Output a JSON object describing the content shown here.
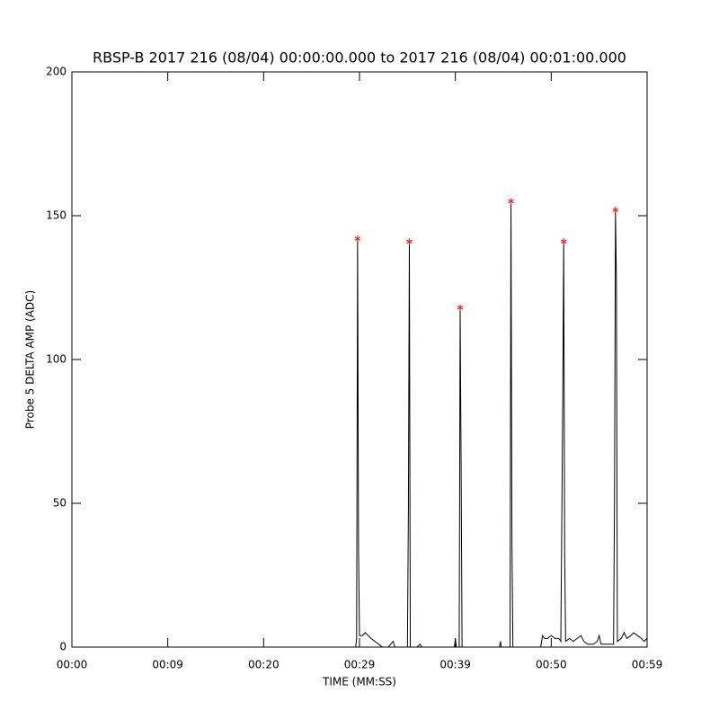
{
  "chart_data": {
    "type": "line",
    "title": "RBSP-B 2017 216 (08/04) 00:00:00.000 to 2017 216 (08/04) 00:01:00.000",
    "xlabel": "TIME (MM:SS)",
    "ylabel": "Probe 5 DELTA AMP (ADC)",
    "xlim": [
      0,
      60
    ],
    "ylim": [
      0,
      200
    ],
    "xticks": [
      {
        "value": 0,
        "label": "00:00"
      },
      {
        "value": 10,
        "label": "00:09"
      },
      {
        "value": 20,
        "label": "00:20"
      },
      {
        "value": 30,
        "label": "00:29"
      },
      {
        "value": 40,
        "label": "00:39"
      },
      {
        "value": 50,
        "label": "00:50"
      },
      {
        "value": 60,
        "label": "00:59"
      }
    ],
    "yticks": [
      0,
      50,
      100,
      150,
      200
    ],
    "x": [
      0,
      29.6,
      29.7,
      29.8,
      29.9,
      30.0,
      30.3,
      30.6,
      30.9,
      31.2,
      31.6,
      32.0,
      32.4,
      33.0,
      33.5,
      33.7,
      35.0,
      35.1,
      35.2,
      35.3,
      36.0,
      36.3,
      36.5,
      39.9,
      40.0,
      40.1,
      40.4,
      40.5,
      40.6,
      40.7,
      44.6,
      44.7,
      44.8,
      45.7,
      45.8,
      45.9,
      46.0,
      48.9,
      49.1,
      49.3,
      49.6,
      50.0,
      50.4,
      50.8,
      51.0,
      51.2,
      51.3,
      51.4,
      51.5,
      51.9,
      52.3,
      52.7,
      53.1,
      53.4,
      53.8,
      54.4,
      54.8,
      55.0,
      55.2,
      56.5,
      56.6,
      56.7,
      56.8,
      56.9,
      57.3,
      57.6,
      57.9,
      58.3,
      58.6,
      59.0,
      59.4,
      59.7,
      60.0
    ],
    "series": [
      {
        "color": "#000000",
        "values": [
          0,
          0,
          3,
          142,
          34,
          4,
          4,
          5,
          4,
          3,
          2,
          1,
          0,
          0,
          2,
          0,
          0,
          47,
          141,
          0,
          0,
          1,
          0,
          0,
          3,
          0,
          0,
          118,
          63,
          0,
          0,
          2,
          0,
          0,
          155,
          36,
          0,
          0,
          4,
          3,
          3,
          4,
          3,
          3,
          2,
          85,
          141,
          33,
          2,
          3,
          2,
          3,
          4,
          2,
          1,
          1,
          2,
          4,
          1,
          1,
          50,
          152,
          127,
          2,
          3,
          5,
          3,
          4,
          5,
          4,
          3,
          2,
          3
        ]
      }
    ],
    "peaks": {
      "color": "#ff2020",
      "marker": "*",
      "x": [
        29.8,
        35.2,
        40.5,
        45.8,
        51.3,
        56.7
      ],
      "values": [
        142,
        141,
        118,
        155,
        141,
        152
      ]
    }
  }
}
